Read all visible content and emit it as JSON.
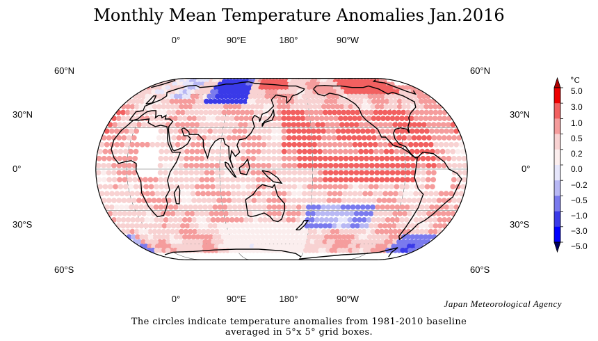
{
  "title": "Monthly Mean Temperature Anomalies Jan.2016",
  "credit": "Japan Meteorological Agency",
  "caption_line1": "The circles indicate temperature anomalies from 1981-2010 baseline",
  "caption_line2": "averaged in 5°x 5° grid boxes.",
  "map": {
    "projection": "Eckert IV",
    "central_longitude": 150,
    "lon_labels": [
      "0°",
      "90°E",
      "180°",
      "90°W"
    ],
    "lat_labels": [
      "60°N",
      "30°N",
      "0°",
      "30°S",
      "60°S"
    ],
    "grid_spacing_deg": 5
  },
  "colorbar": {
    "unit": "°C",
    "ticks": [
      "5.0",
      "3.0",
      "1.0",
      "0.5",
      "0.2",
      "0.0",
      "−0.2",
      "−0.5",
      "−1.0",
      "−3.0",
      "−5.0"
    ],
    "colors_top_to_bottom": [
      "#b00000",
      "#ee0000",
      "#f26060",
      "#f59c9c",
      "#f8d2d2",
      "#fbeeee",
      "#e6e6fb",
      "#b8b8f4",
      "#7a7aee",
      "#3a3ae8",
      "#0000ff",
      "#000080"
    ],
    "over_color": "#b00000",
    "under_color": "#000060"
  }
}
